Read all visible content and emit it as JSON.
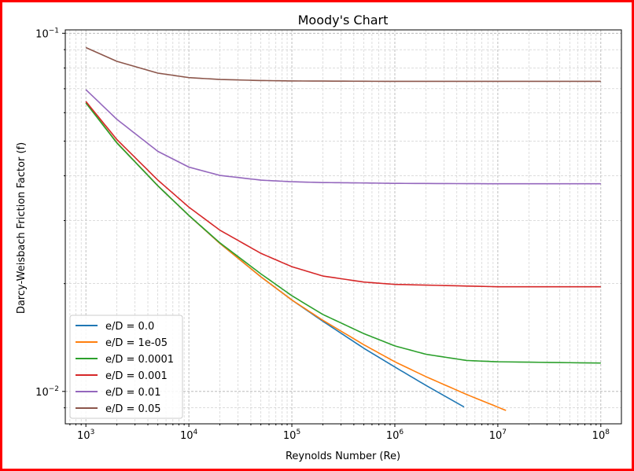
{
  "chart_data": {
    "type": "line",
    "title": "Moody's Chart",
    "xlabel": "Reynolds Number (Re)",
    "ylabel": "Darcy-Weisbach Friction Factor (f)",
    "xscale": "log",
    "yscale": "log",
    "xlim": [
      631,
      158489000
    ],
    "ylim": [
      0.00812,
      0.1022
    ],
    "x_major_ticks": [
      {
        "value": 1000,
        "base": "10",
        "exp": "3"
      },
      {
        "value": 10000,
        "base": "10",
        "exp": "4"
      },
      {
        "value": 100000,
        "base": "10",
        "exp": "5"
      },
      {
        "value": 1000000,
        "base": "10",
        "exp": "6"
      },
      {
        "value": 10000000,
        "base": "10",
        "exp": "7"
      },
      {
        "value": 100000000,
        "base": "10",
        "exp": "8"
      }
    ],
    "y_major_ticks": [
      {
        "value": 0.01,
        "base": "10",
        "exp": "−2"
      },
      {
        "value": 0.1,
        "base": "10",
        "exp": "−1"
      }
    ],
    "grid": "both (major and minor), dashed",
    "legend_position": "lower-left",
    "series": [
      {
        "name": "e/D = 0.0",
        "color": "#1f77b4",
        "x": [
          1000,
          2000,
          5000,
          10000,
          20000,
          50000,
          100000,
          200000,
          500000,
          1000000,
          2000000,
          4700000
        ],
        "y": [
          0.064,
          0.0495,
          0.0375,
          0.031,
          0.0259,
          0.0209,
          0.018,
          0.0157,
          0.0132,
          0.0117,
          0.0104,
          0.00905
        ]
      },
      {
        "name": "e/D = 1e-05",
        "color": "#ff7f0e",
        "x": [
          1000,
          2000,
          5000,
          10000,
          20000,
          50000,
          100000,
          200000,
          500000,
          1000000,
          2000000,
          5000000,
          12000000
        ],
        "y": [
          0.064,
          0.0495,
          0.0375,
          0.031,
          0.0259,
          0.0209,
          0.018,
          0.0158,
          0.0135,
          0.0121,
          0.011,
          0.0098,
          0.00885
        ]
      },
      {
        "name": "e/D = 0.0001",
        "color": "#2ca02c",
        "x": [
          1000,
          2000,
          5000,
          10000,
          20000,
          50000,
          100000,
          200000,
          500000,
          1000000,
          2000000,
          5000000,
          10000000,
          100000000
        ],
        "y": [
          0.0639,
          0.0494,
          0.0375,
          0.031,
          0.026,
          0.0213,
          0.0185,
          0.0164,
          0.0145,
          0.0134,
          0.0127,
          0.0122,
          0.0121,
          0.012
        ]
      },
      {
        "name": "e/D = 0.001",
        "color": "#d62728",
        "x": [
          1000,
          2000,
          5000,
          10000,
          20000,
          50000,
          100000,
          200000,
          500000,
          1000000,
          10000000,
          100000000
        ],
        "y": [
          0.0645,
          0.0505,
          0.0389,
          0.0327,
          0.0282,
          0.0243,
          0.0223,
          0.021,
          0.0202,
          0.0199,
          0.0196,
          0.0196
        ]
      },
      {
        "name": "e/D = 0.01",
        "color": "#9467bd",
        "x": [
          1000,
          2000,
          5000,
          10000,
          20000,
          50000,
          100000,
          200000,
          500000,
          1000000,
          10000000,
          100000000
        ],
        "y": [
          0.0696,
          0.0575,
          0.0468,
          0.0423,
          0.0401,
          0.0389,
          0.0385,
          0.0383,
          0.0382,
          0.0381,
          0.038,
          0.038
        ]
      },
      {
        "name": "e/D = 0.05",
        "color": "#8c564b",
        "x": [
          1000,
          2000,
          5000,
          10000,
          20000,
          50000,
          100000,
          1000000,
          100000000
        ],
        "y": [
          0.0912,
          0.0835,
          0.0774,
          0.0752,
          0.0743,
          0.0738,
          0.0736,
          0.0734,
          0.0734
        ]
      }
    ]
  }
}
